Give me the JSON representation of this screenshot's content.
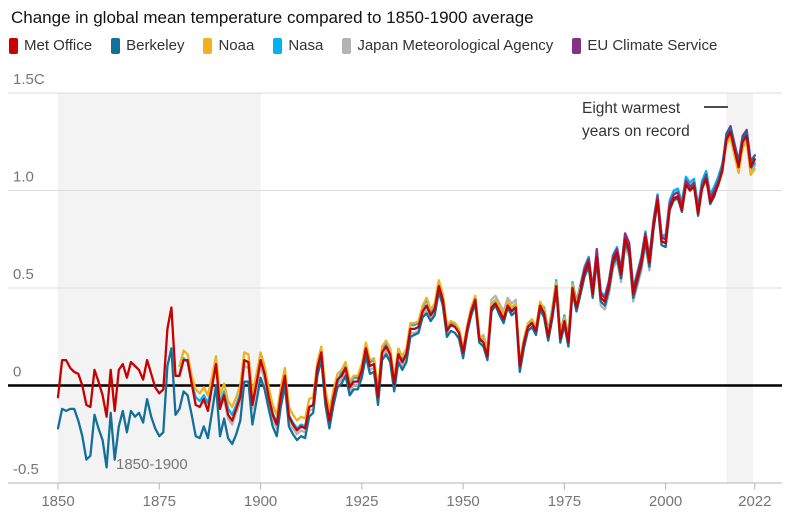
{
  "header": {
    "title": "Change in global mean temperature compared to 1850-1900 average"
  },
  "chart_data": {
    "type": "line",
    "title": "Change in global mean temperature compared to 1850-1900 average",
    "xlabel": "",
    "ylabel": "",
    "x_range": [
      1850,
      2022
    ],
    "y_range": [
      -0.5,
      1.5
    ],
    "grid": "horizontal",
    "legend_position": "top",
    "x_ticks": [
      1850,
      1875,
      1900,
      1925,
      1950,
      1975,
      2000,
      2022
    ],
    "y_ticks": [
      {
        "value": 1.5,
        "label": "1.5C"
      },
      {
        "value": 1.0,
        "label": "1.0"
      },
      {
        "value": 0.5,
        "label": "0.5"
      },
      {
        "value": 0.0,
        "label": "0"
      },
      {
        "value": -0.5,
        "label": "-0.5"
      }
    ],
    "baseline_label": "1850-1900",
    "annotation": {
      "text_lines": [
        "Eight warmest",
        "years on record"
      ]
    },
    "shaded_bands": [
      {
        "from": 1850,
        "to": 1900
      },
      {
        "from": 2015,
        "to": 2021.6
      }
    ],
    "colors": {
      "band": "#f3f3f3",
      "gridline": "#dcdcdc",
      "axis": "#b5b5b5",
      "zero_line": "#000000",
      "tick_label": "#767676",
      "annotation": "#333333"
    },
    "draw_order": [
      4,
      3,
      2,
      5,
      1,
      0
    ],
    "series": [
      {
        "name": "Met Office",
        "color": "#c70000",
        "start_year": 1850,
        "values": [
          -0.06,
          0.13,
          0.13,
          0.09,
          0.07,
          0.06,
          0.0,
          -0.1,
          -0.11,
          0.08,
          0.02,
          -0.05,
          -0.16,
          0.08,
          -0.13,
          0.08,
          0.11,
          0.04,
          0.12,
          0.1,
          0.08,
          0.03,
          0.13,
          0.06,
          -0.01,
          -0.04,
          -0.02,
          0.29,
          0.4,
          0.05,
          0.05,
          0.13,
          0.13,
          0.01,
          -0.1,
          -0.11,
          -0.07,
          -0.13,
          -0.01,
          0.11,
          -0.12,
          -0.05,
          -0.15,
          -0.18,
          -0.12,
          -0.06,
          0.13,
          0.12,
          -0.1,
          0.01,
          0.13,
          0.06,
          -0.06,
          -0.15,
          -0.2,
          -0.05,
          0.05,
          -0.16,
          -0.2,
          -0.23,
          -0.21,
          -0.22,
          -0.11,
          -0.1,
          0.09,
          0.17,
          -0.06,
          -0.18,
          -0.06,
          0.03,
          0.05,
          0.09,
          -0.01,
          0.02,
          0.02,
          0.08,
          0.19,
          0.1,
          0.11,
          -0.06,
          0.17,
          0.2,
          0.16,
          0.01,
          0.16,
          0.12,
          0.16,
          0.29,
          0.29,
          0.3,
          0.38,
          0.41,
          0.36,
          0.39,
          0.51,
          0.44,
          0.28,
          0.31,
          0.3,
          0.27,
          0.17,
          0.29,
          0.38,
          0.44,
          0.24,
          0.22,
          0.15,
          0.4,
          0.42,
          0.38,
          0.34,
          0.41,
          0.38,
          0.4,
          0.1,
          0.22,
          0.3,
          0.32,
          0.28,
          0.41,
          0.37,
          0.25,
          0.36,
          0.51,
          0.24,
          0.33,
          0.22,
          0.5,
          0.4,
          0.49,
          0.58,
          0.63,
          0.47,
          0.66,
          0.45,
          0.43,
          0.51,
          0.64,
          0.68,
          0.57,
          0.75,
          0.7,
          0.47,
          0.55,
          0.63,
          0.76,
          0.63,
          0.82,
          0.95,
          0.74,
          0.73,
          0.91,
          0.96,
          0.97,
          0.9,
          1.03,
          1.0,
          1.02,
          0.88,
          1.01,
          1.06,
          0.94,
          0.98,
          1.03,
          1.1,
          1.26,
          1.3,
          1.21,
          1.12,
          1.25,
          1.28,
          1.12,
          1.16
        ]
      },
      {
        "name": "Berkeley",
        "color": "#12709b",
        "start_year": 1850,
        "values": [
          -0.22,
          -0.12,
          -0.13,
          -0.12,
          -0.12,
          -0.18,
          -0.26,
          -0.38,
          -0.36,
          -0.15,
          -0.22,
          -0.28,
          -0.42,
          -0.14,
          -0.38,
          -0.21,
          -0.13,
          -0.24,
          -0.13,
          -0.16,
          -0.14,
          -0.19,
          -0.07,
          -0.16,
          -0.22,
          -0.26,
          -0.24,
          0.1,
          0.19,
          -0.15,
          -0.12,
          -0.03,
          -0.05,
          -0.15,
          -0.26,
          -0.27,
          -0.21,
          -0.27,
          -0.14,
          0.0,
          -0.26,
          -0.17,
          -0.27,
          -0.3,
          -0.25,
          -0.18,
          0.02,
          0.02,
          -0.2,
          -0.08,
          0.04,
          -0.02,
          -0.12,
          -0.21,
          -0.26,
          -0.11,
          0.0,
          -0.21,
          -0.25,
          -0.28,
          -0.26,
          -0.27,
          -0.16,
          -0.14,
          0.05,
          0.13,
          -0.1,
          -0.22,
          -0.1,
          -0.01,
          0.01,
          0.05,
          -0.05,
          -0.02,
          -0.02,
          0.04,
          0.15,
          0.06,
          0.07,
          -0.1,
          0.13,
          0.16,
          0.12,
          -0.03,
          0.12,
          0.08,
          0.12,
          0.25,
          0.26,
          0.27,
          0.35,
          0.37,
          0.33,
          0.36,
          0.48,
          0.41,
          0.25,
          0.28,
          0.27,
          0.24,
          0.14,
          0.27,
          0.36,
          0.42,
          0.22,
          0.2,
          0.13,
          0.38,
          0.41,
          0.36,
          0.32,
          0.4,
          0.36,
          0.38,
          0.07,
          0.19,
          0.28,
          0.3,
          0.26,
          0.39,
          0.35,
          0.23,
          0.34,
          0.49,
          0.22,
          0.31,
          0.2,
          0.48,
          0.38,
          0.47,
          0.56,
          0.61,
          0.45,
          0.64,
          0.43,
          0.41,
          0.49,
          0.62,
          0.66,
          0.55,
          0.73,
          0.68,
          0.45,
          0.53,
          0.61,
          0.74,
          0.61,
          0.8,
          0.94,
          0.72,
          0.71,
          0.9,
          0.95,
          0.96,
          0.89,
          1.03,
          1.0,
          1.03,
          0.87,
          1.02,
          1.07,
          0.93,
          0.97,
          1.04,
          1.11,
          1.28,
          1.32,
          1.23,
          1.14,
          1.27,
          1.3,
          1.14,
          1.18
        ]
      },
      {
        "name": "Noaa",
        "color": "#eeb121",
        "start_year": 1880,
        "values": [
          0.1,
          0.18,
          0.16,
          0.05,
          -0.02,
          -0.04,
          -0.01,
          -0.05,
          0.04,
          0.15,
          -0.05,
          0.01,
          -0.08,
          -0.11,
          -0.06,
          0.0,
          0.17,
          0.16,
          -0.04,
          0.06,
          0.17,
          0.1,
          -0.01,
          -0.1,
          -0.15,
          -0.01,
          0.09,
          -0.11,
          -0.15,
          -0.18,
          -0.16,
          -0.17,
          -0.07,
          -0.06,
          0.12,
          0.2,
          -0.02,
          -0.13,
          -0.02,
          0.06,
          0.08,
          0.12,
          0.02,
          0.05,
          0.05,
          0.11,
          0.22,
          0.13,
          0.14,
          -0.02,
          0.2,
          0.23,
          0.19,
          0.04,
          0.19,
          0.15,
          0.19,
          0.32,
          0.32,
          0.33,
          0.41,
          0.45,
          0.39,
          0.42,
          0.54,
          0.47,
          0.31,
          0.33,
          0.32,
          0.29,
          0.19,
          0.31,
          0.4,
          0.46,
          0.26,
          0.24,
          0.17,
          0.42,
          0.44,
          0.4,
          0.36,
          0.43,
          0.4,
          0.42,
          0.12,
          0.24,
          0.32,
          0.34,
          0.3,
          0.43,
          0.39,
          0.27,
          0.38,
          0.53,
          0.26,
          0.35,
          0.24,
          0.52,
          0.42,
          0.51,
          0.6,
          0.65,
          0.49,
          0.68,
          0.47,
          0.45,
          0.53,
          0.66,
          0.7,
          0.59,
          0.77,
          0.72,
          0.49,
          0.57,
          0.65,
          0.78,
          0.65,
          0.84,
          0.97,
          0.76,
          0.75,
          0.93,
          0.98,
          0.99,
          0.92,
          1.05,
          1.02,
          1.04,
          0.9,
          1.03,
          1.08,
          0.96,
          1.0,
          1.05,
          1.12,
          1.24,
          1.27,
          1.18,
          1.09,
          1.22,
          1.25,
          1.08,
          1.11
        ]
      },
      {
        "name": "Nasa",
        "color": "#00b2f0",
        "start_year": 1880,
        "values": [
          0.06,
          0.14,
          0.12,
          0.01,
          -0.06,
          -0.08,
          -0.05,
          -0.09,
          0.0,
          0.11,
          -0.09,
          -0.03,
          -0.12,
          -0.15,
          -0.1,
          -0.04,
          0.13,
          0.12,
          -0.08,
          0.02,
          0.13,
          0.06,
          -0.05,
          -0.14,
          -0.19,
          -0.05,
          0.05,
          -0.15,
          -0.19,
          -0.22,
          -0.2,
          -0.21,
          -0.11,
          -0.1,
          0.08,
          0.16,
          -0.06,
          -0.17,
          -0.06,
          0.02,
          0.07,
          0.11,
          0.01,
          0.04,
          0.04,
          0.1,
          0.21,
          0.12,
          0.13,
          -0.03,
          0.19,
          0.22,
          0.18,
          0.03,
          0.18,
          0.14,
          0.18,
          0.31,
          0.31,
          0.32,
          0.4,
          0.44,
          0.38,
          0.41,
          0.53,
          0.46,
          0.3,
          0.32,
          0.31,
          0.28,
          0.18,
          0.3,
          0.39,
          0.45,
          0.25,
          0.23,
          0.16,
          0.41,
          0.43,
          0.39,
          0.35,
          0.42,
          0.39,
          0.41,
          0.11,
          0.23,
          0.31,
          0.33,
          0.29,
          0.42,
          0.4,
          0.28,
          0.39,
          0.54,
          0.27,
          0.36,
          0.25,
          0.53,
          0.43,
          0.52,
          0.61,
          0.66,
          0.5,
          0.69,
          0.48,
          0.46,
          0.54,
          0.67,
          0.71,
          0.6,
          0.78,
          0.73,
          0.5,
          0.58,
          0.66,
          0.79,
          0.66,
          0.85,
          0.98,
          0.77,
          0.77,
          0.95,
          1.0,
          1.01,
          0.94,
          1.07,
          1.04,
          1.06,
          0.92,
          1.05,
          1.1,
          0.98,
          1.02,
          1.07,
          1.14,
          1.27,
          1.32,
          1.23,
          1.12,
          1.26,
          1.29,
          1.11,
          1.14
        ]
      },
      {
        "name": "Japan Meteorological Agency",
        "color": "#b4b4b6",
        "start_year": 1891,
        "values": [
          -0.07,
          -0.17,
          -0.2,
          -0.14,
          -0.08,
          0.1,
          0.09,
          -0.12,
          -0.01,
          0.1,
          0.03,
          -0.08,
          -0.17,
          -0.22,
          -0.07,
          0.02,
          -0.18,
          -0.22,
          -0.25,
          -0.23,
          -0.24,
          -0.13,
          -0.12,
          0.06,
          0.14,
          -0.08,
          -0.2,
          -0.08,
          0.01,
          0.03,
          0.07,
          -0.03,
          0.0,
          0.0,
          0.06,
          0.17,
          0.08,
          0.09,
          -0.08,
          0.15,
          0.18,
          0.14,
          -0.01,
          0.14,
          0.1,
          0.14,
          0.27,
          0.27,
          0.28,
          0.36,
          0.39,
          0.34,
          0.37,
          0.49,
          0.42,
          0.26,
          0.33,
          0.32,
          0.29,
          0.15,
          0.27,
          0.36,
          0.42,
          0.22,
          0.26,
          0.19,
          0.44,
          0.46,
          0.42,
          0.38,
          0.45,
          0.42,
          0.44,
          0.08,
          0.2,
          0.28,
          0.3,
          0.26,
          0.39,
          0.35,
          0.23,
          0.34,
          0.49,
          0.22,
          0.31,
          0.2,
          0.48,
          0.38,
          0.47,
          0.56,
          0.61,
          0.45,
          0.64,
          0.41,
          0.39,
          0.47,
          0.6,
          0.64,
          0.53,
          0.71,
          0.66,
          0.43,
          0.51,
          0.59,
          0.72,
          0.59,
          0.8,
          0.98,
          0.77,
          0.76,
          0.94,
          0.99,
          1.0,
          0.93,
          1.04,
          1.01,
          1.03,
          0.89,
          1.02,
          1.07,
          0.95,
          0.99,
          1.04,
          1.11,
          1.24,
          1.28,
          1.19,
          1.1,
          1.23,
          1.26,
          1.09,
          1.13
        ]
      },
      {
        "name": "EU Climate Service",
        "color": "#862f87",
        "start_year": 1979,
        "values": [
          0.51,
          0.6,
          0.65,
          0.49,
          0.7,
          0.47,
          0.45,
          0.53,
          0.66,
          0.7,
          0.59,
          0.78,
          0.73,
          0.49,
          0.57,
          0.65,
          0.78,
          0.65,
          0.84,
          0.97,
          0.76,
          0.75,
          0.93,
          0.98,
          0.99,
          0.92,
          1.05,
          1.02,
          1.04,
          0.9,
          1.03,
          1.08,
          0.96,
          1.0,
          1.05,
          1.12,
          1.29,
          1.33,
          1.24,
          1.15,
          1.28,
          1.31,
          1.15,
          1.18
        ]
      }
    ]
  }
}
